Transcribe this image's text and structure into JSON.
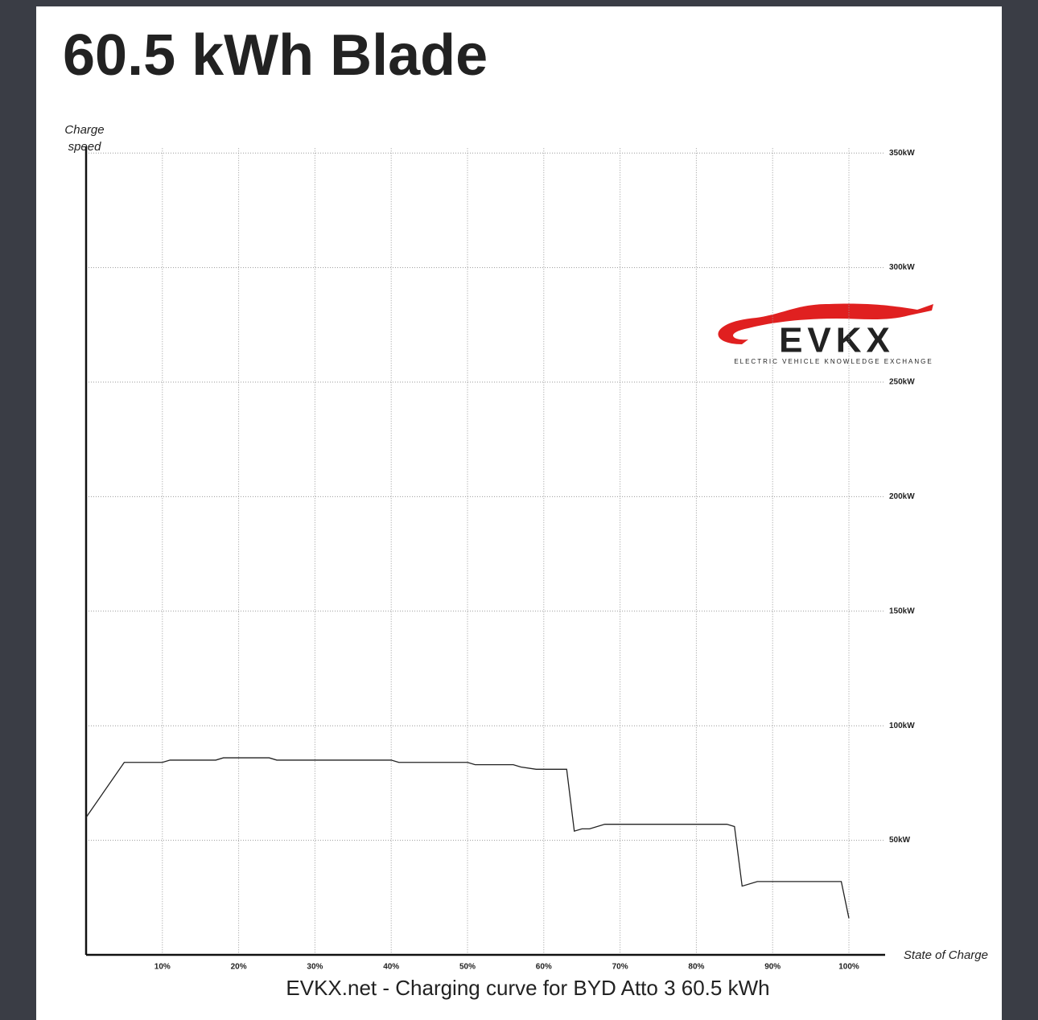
{
  "chart_data": {
    "type": "line",
    "title": "60.5 kWh Blade",
    "y_label": "Charge speed",
    "x_label": "State of Charge",
    "caption": "EVKX.net - Charging curve for BYD Atto 3 60.5 kWh",
    "logo": {
      "text": "EVKX",
      "tagline": "ELECTRIC VEHICLE KNOWLEDGE EXCHANGE"
    },
    "x": [
      0,
      5,
      10,
      11,
      17,
      18,
      24,
      25,
      40,
      41,
      50,
      51,
      56,
      57,
      59,
      63,
      64,
      65,
      66,
      68,
      84,
      85,
      86,
      88,
      99,
      100
    ],
    "series": [
      {
        "name": "Charge speed",
        "color": "#222222",
        "values": [
          60,
          84,
          84,
          85,
          85,
          86,
          86,
          85,
          85,
          84,
          84,
          83,
          83,
          82,
          81,
          81,
          54,
          55,
          55,
          57,
          57,
          56,
          30,
          32,
          32,
          16
        ]
      }
    ],
    "xlim": [
      0,
      100
    ],
    "ylim": [
      0,
      350
    ],
    "xticks": [
      {
        "value": 10,
        "label": "10%"
      },
      {
        "value": 20,
        "label": "20%"
      },
      {
        "value": 30,
        "label": "30%"
      },
      {
        "value": 40,
        "label": "40%"
      },
      {
        "value": 50,
        "label": "50%"
      },
      {
        "value": 60,
        "label": "60%"
      },
      {
        "value": 70,
        "label": "70%"
      },
      {
        "value": 80,
        "label": "80%"
      },
      {
        "value": 90,
        "label": "90%"
      },
      {
        "value": 100,
        "label": "100%"
      }
    ],
    "yticks": [
      {
        "value": 50,
        "label": "50kW"
      },
      {
        "value": 100,
        "label": "100kW"
      },
      {
        "value": 150,
        "label": "150kW"
      },
      {
        "value": 200,
        "label": "200kW"
      },
      {
        "value": 250,
        "label": "250kW"
      },
      {
        "value": 300,
        "label": "300kW"
      },
      {
        "value": 350,
        "label": "350kW"
      }
    ],
    "grid": true
  }
}
